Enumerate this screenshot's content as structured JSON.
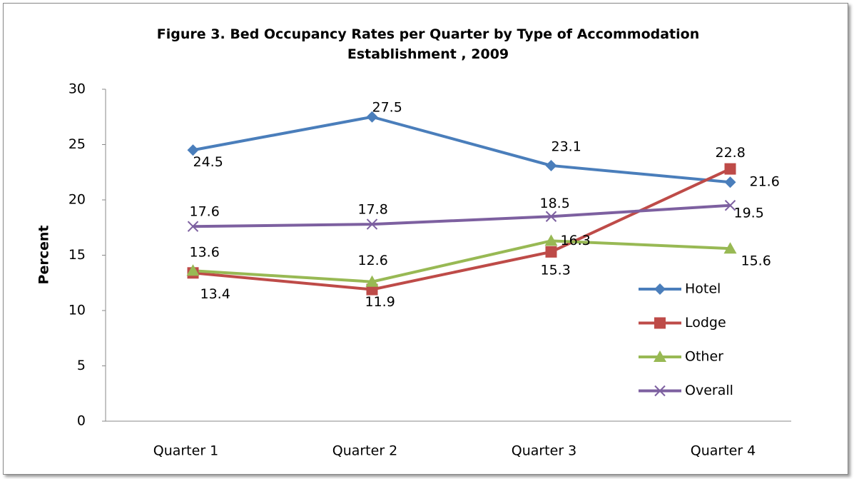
{
  "chart_data": {
    "type": "line",
    "title": "Figure 3. Bed Occupancy Rates per Quarter by Type of Accommodation Establishment , 2009",
    "ylabel": "Percent",
    "categories": [
      "Quarter 1",
      "Quarter 2",
      "Quarter 3",
      "Quarter 4"
    ],
    "series": [
      {
        "name": "Hotel",
        "color": "#4a7ebb",
        "marker": "diamond",
        "values": [
          24.5,
          27.5,
          23.1,
          21.6
        ]
      },
      {
        "name": "Lodge",
        "color": "#be4b48",
        "marker": "square",
        "values": [
          13.4,
          11.9,
          15.3,
          22.8
        ]
      },
      {
        "name": "Other",
        "color": "#98b954",
        "marker": "triangle",
        "values": [
          13.6,
          12.6,
          16.3,
          15.6
        ]
      },
      {
        "name": "Overall",
        "color": "#7d60a0",
        "marker": "x",
        "values": [
          17.6,
          17.8,
          18.5,
          19.5
        ]
      }
    ],
    "ylim": [
      0,
      30
    ],
    "yticks": [
      0,
      5,
      10,
      15,
      20,
      25,
      30
    ],
    "grid": false,
    "legend": "right"
  }
}
